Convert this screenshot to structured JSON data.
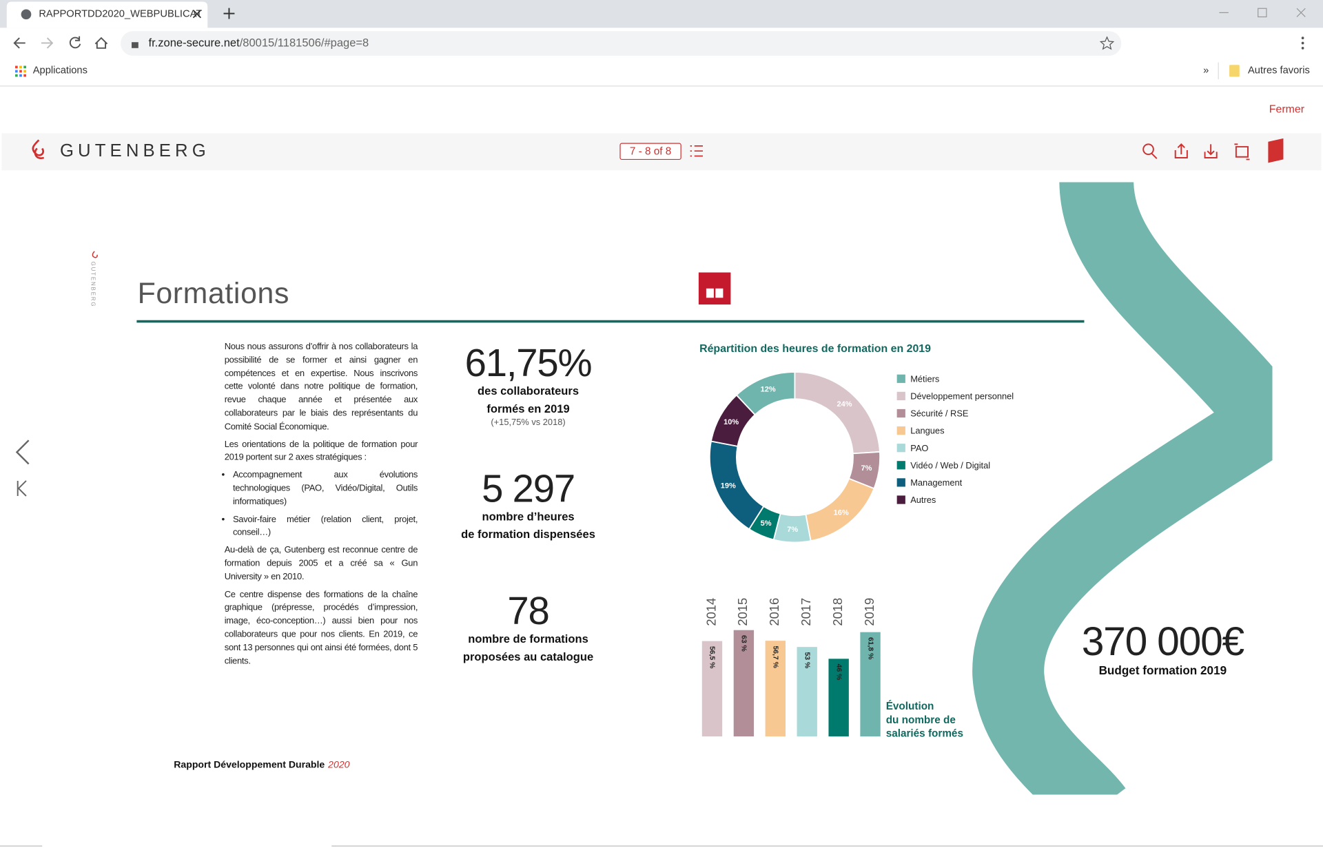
{
  "browser": {
    "tab_title": "RAPPORTDD2020_WEBPUBLICAT",
    "url_host": "fr.zone-secure.net",
    "url_path": "/80015/1181506/#page=8",
    "bookmark": "Applications",
    "other_bookmarks": "Autres favoris"
  },
  "viewer": {
    "close": "Fermer",
    "logo": "GUTENBERG",
    "page_indicator": "7 - 8 of 8"
  },
  "document": {
    "side_logo": "GUTENBERG",
    "title": "Formations",
    "intro": [
      "Nous nous assurons d’offrir à nos collaborateurs la possibilité de se former et ainsi gagner en compétences et en expertise. Nous inscrivons cette volonté dans notre politique de formation, revue chaque année et présentée aux collaborateurs par le biais des représentants du Comité Social Économique.",
      "Les orientations de la politique de formation pour 2019 portent sur 2 axes stratégiques :"
    ],
    "bullets": [
      "Accompagnement aux évolutions technologiques (PAO, Vidéo/Digital, Outils informatiques)",
      "Savoir-faire métier (relation client, projet, conseil…)"
    ],
    "outro": [
      "Au-delà de ça, Gutenberg est reconnue centre de formation depuis 2005 et a créé sa « Gun University » en 2010.",
      "Ce centre dispense des formations de la chaîne graphique (prépresse, procédés d’impression, image, éco-conception…) aussi bien pour nos collaborateurs que pour nos clients. En 2019, ce sont 13 personnes qui ont ainsi été formées, dont 5 clients."
    ],
    "stats": [
      {
        "value": "61,75%",
        "lines": [
          "des collaborateurs",
          "formés en 2019"
        ],
        "note": "(+15,75% vs 2018)"
      },
      {
        "value": "5 297",
        "lines": [
          "nombre d’heures",
          "de formation dispensées"
        ]
      },
      {
        "value": "78",
        "lines": [
          "nombre de formations",
          "proposées au catalogue"
        ]
      }
    ],
    "budget": {
      "value": "370 000€",
      "label": "Budget formation 2019"
    },
    "footer": {
      "text": "Rapport Développement Durable",
      "year": "2020"
    }
  },
  "chart_data": [
    {
      "type": "donut",
      "title": "Répartition des heures de formation en 2019",
      "categories": [
        "Métiers",
        "Développement personnel",
        "Sécurité / RSE",
        "Langues",
        "PAO",
        "Vidéo / Web / Digital",
        "Management",
        "Autres"
      ],
      "values": [
        12,
        24,
        7,
        16,
        7,
        5,
        19,
        10
      ],
      "value_labels": [
        "12%",
        "24%",
        "7%",
        "16%",
        "7%",
        "5%",
        "19%",
        "10%"
      ],
      "colors": [
        "#6fb5ae",
        "#d8c4c9",
        "#b28e98",
        "#f8c893",
        "#a9dad9",
        "#007a6c",
        "#0d5f7d",
        "#4a1d3e"
      ]
    },
    {
      "type": "bar",
      "title_lines": [
        "Évolution",
        "du nombre de",
        "salariés formés"
      ],
      "categories": [
        "2014",
        "2015",
        "2016",
        "2017",
        "2018",
        "2019"
      ],
      "values": [
        56.5,
        63,
        56.7,
        53,
        46,
        61.8
      ],
      "value_labels": [
        "56,5 %",
        "63 %",
        "56,7 %",
        "53 %",
        "46 %",
        "61,8 %"
      ],
      "colors": [
        "#d8c4c9",
        "#b28e98",
        "#f8c893",
        "#a9dad9",
        "#007a6c",
        "#6fb5ae"
      ]
    }
  ]
}
